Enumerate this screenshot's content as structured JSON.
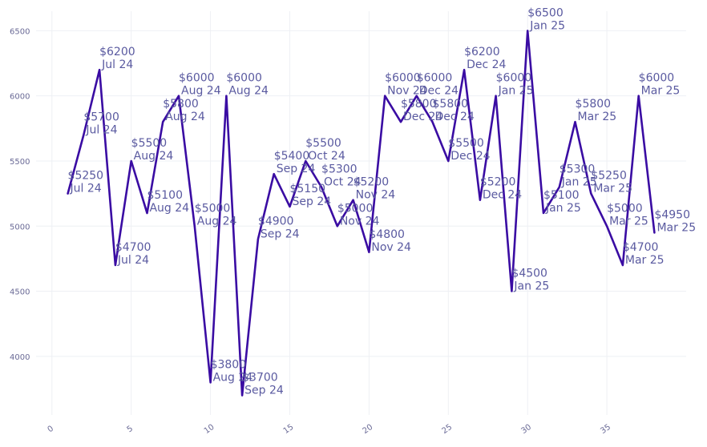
{
  "chart_data": {
    "type": "line",
    "title": "",
    "xlabel": "",
    "ylabel": "",
    "xlim": [
      -1,
      40
    ],
    "ylim": [
      3550,
      6650
    ],
    "grid": true,
    "line_color": "#3a0ca3",
    "label_color": "#5a5aa0",
    "x_ticks": [
      0,
      5,
      10,
      15,
      20,
      25,
      30,
      35
    ],
    "y_ticks": [
      4000,
      4500,
      5000,
      5500,
      6000,
      6500
    ],
    "x": [
      1,
      2,
      3,
      4,
      5,
      6,
      7,
      8,
      9,
      10,
      11,
      12,
      13,
      14,
      15,
      16,
      17,
      18,
      19,
      20,
      21,
      22,
      23,
      24,
      25,
      26,
      27,
      28,
      29,
      30,
      31,
      32,
      33,
      34,
      35,
      36,
      37,
      38
    ],
    "values": [
      5250,
      5700,
      6200,
      4700,
      5500,
      5100,
      5800,
      6000,
      5000,
      3800,
      6000,
      3700,
      4900,
      5400,
      5150,
      5500,
      5300,
      5000,
      5200,
      4800,
      6000,
      5800,
      6000,
      5800,
      5500,
      6200,
      5200,
      6000,
      4500,
      6500,
      5100,
      5300,
      5800,
      5250,
      5000,
      4700,
      6000,
      4950
    ],
    "labels": [
      [
        "$5250",
        "Jul 24"
      ],
      [
        "$5700",
        "Jul 24"
      ],
      [
        "$6200",
        "Jul 24"
      ],
      [
        "$4700",
        "Jul 24"
      ],
      [
        "$5500",
        "Aug 24"
      ],
      [
        "$5100",
        "Aug 24"
      ],
      [
        "$5800",
        "Aug 24"
      ],
      [
        "$6000",
        "Aug 24"
      ],
      [
        "$5000",
        "Aug 24"
      ],
      [
        "$3800",
        "Aug 24"
      ],
      [
        "$6000",
        "Aug 24"
      ],
      [
        "$3700",
        "Sep 24"
      ],
      [
        "$4900",
        "Sep 24"
      ],
      [
        "$5400",
        "Sep 24"
      ],
      [
        "$5150",
        "Sep 24"
      ],
      [
        "$5500",
        "Oct 24"
      ],
      [
        "$5300",
        "Oct 24"
      ],
      [
        "$5000",
        "Nov 24"
      ],
      [
        "$5200",
        "Nov 24"
      ],
      [
        "$4800",
        "Nov 24"
      ],
      [
        "$6000",
        "Nov 24"
      ],
      [
        "$5800",
        "Dec 24"
      ],
      [
        "$6000",
        "Dec 24"
      ],
      [
        "$5800",
        "Dec 24"
      ],
      [
        "$5500",
        "Dec 24"
      ],
      [
        "$6200",
        "Dec 24"
      ],
      [
        "$5200",
        "Dec 24"
      ],
      [
        "$6000",
        "Jan 25"
      ],
      [
        "$4500",
        "Jan 25"
      ],
      [
        "$6500",
        "Jan 25"
      ],
      [
        "$5100",
        "Jan 25"
      ],
      [
        "$5300",
        "Jan 25"
      ],
      [
        "$5800",
        "Mar 25"
      ],
      [
        "$5250",
        "Mar 25"
      ],
      [
        "$5000",
        "Mar 25"
      ],
      [
        "$4700",
        "Mar 25"
      ],
      [
        "$6000",
        "Mar 25"
      ],
      [
        "$4950",
        "Mar 25"
      ]
    ]
  }
}
